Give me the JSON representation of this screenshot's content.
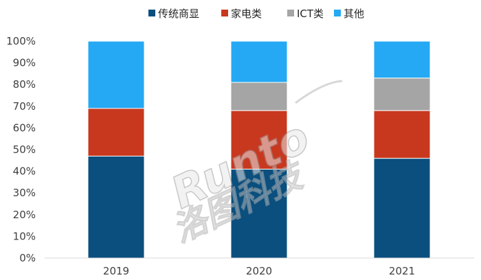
{
  "chart_data": {
    "type": "bar",
    "stacked": true,
    "normalized": true,
    "categories": [
      "2019",
      "2020",
      "2021"
    ],
    "series": [
      {
        "name": "传统商显",
        "values": [
          47,
          41,
          46
        ],
        "color": "#0a4f7e"
      },
      {
        "name": "家电类",
        "values": [
          22,
          27,
          22
        ],
        "color": "#c8381f"
      },
      {
        "name": "ICT类",
        "values": [
          0,
          13,
          15
        ],
        "color": "#a5a5a5"
      },
      {
        "name": "其他",
        "values": [
          31,
          19,
          17
        ],
        "color": "#25a9f4"
      }
    ],
    "y_ticks": [
      "0%",
      "10%",
      "20%",
      "30%",
      "40%",
      "50%",
      "60%",
      "70%",
      "80%",
      "90%",
      "100%"
    ],
    "ylim": [
      0,
      100
    ],
    "grid": false,
    "legend_position": "top"
  },
  "watermark": {
    "brand": "Runto",
    "company": "洛图科技"
  }
}
